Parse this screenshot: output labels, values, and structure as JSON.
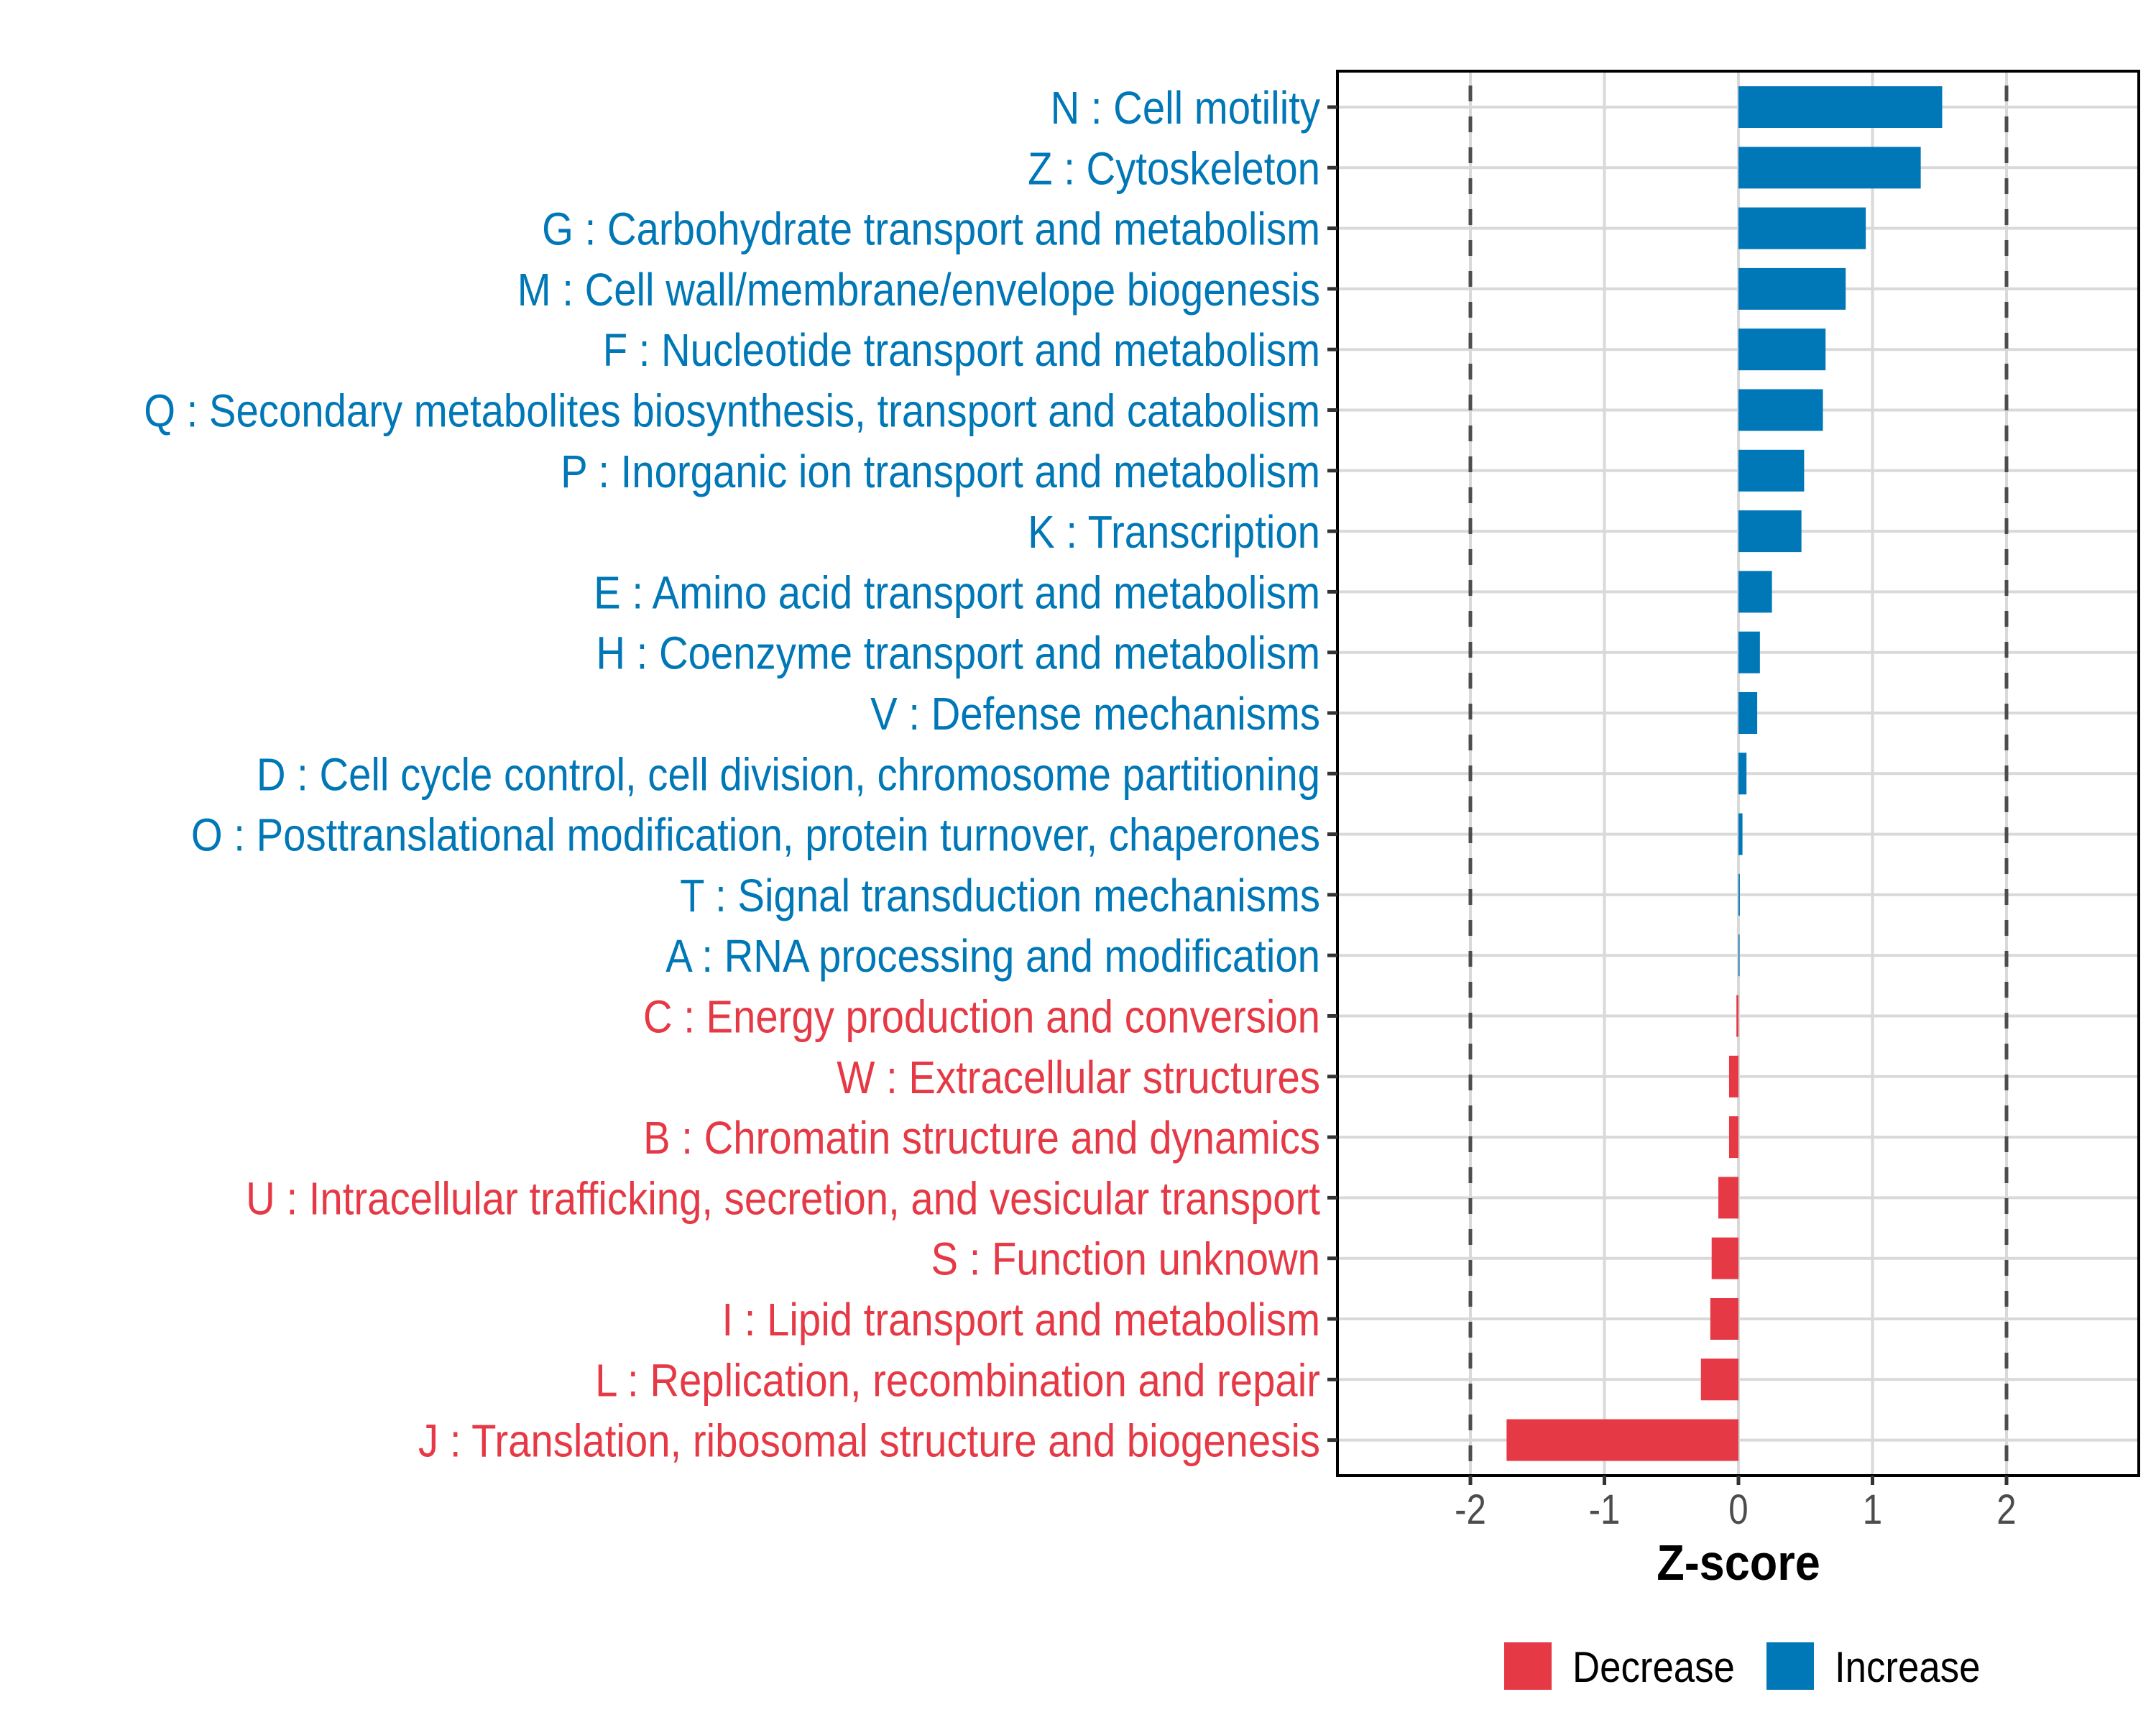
{
  "chart_data": {
    "type": "bar",
    "orientation": "horizontal",
    "title": "",
    "xlabel": "Z-score",
    "ylabel": "",
    "xlim": [
      -2.95,
      3.0
    ],
    "x_ticks": [
      -2,
      -1,
      0,
      1,
      2
    ],
    "x_tick_labels": [
      "-2",
      "-1",
      "0",
      "1",
      "2"
    ],
    "reference_lines": [
      {
        "x": -2,
        "style": "dashed"
      },
      {
        "x": 2,
        "style": "dashed"
      }
    ],
    "grid": true,
    "legend": {
      "position": "bottom",
      "entries": [
        {
          "label": "Decrease",
          "color": "#E63946"
        },
        {
          "label": "Increase",
          "color": "#0077B6"
        }
      ]
    },
    "colors": {
      "Increase": "#0077B6",
      "Decrease": "#E63946"
    },
    "categories": [
      "N : Cell motility",
      "Z : Cytoskeleton",
      "G : Carbohydrate transport and metabolism",
      "M : Cell wall/membrane/envelope biogenesis",
      "F : Nucleotide transport and metabolism",
      "Q : Secondary metabolites biosynthesis, transport and catabolism",
      "P : Inorganic ion transport and metabolism",
      "K : Transcription",
      "E : Amino acid transport and metabolism",
      "H : Coenzyme transport and metabolism",
      "V : Defense mechanisms",
      "D : Cell cycle control, cell division, chromosome partitioning",
      "O : Posttranslational modification, protein turnover, chaperones",
      "T : Signal transduction mechanisms",
      "A : RNA processing and modification",
      "C : Energy production and conversion",
      "W : Extracellular structures",
      "B : Chromatin structure and dynamics",
      "U : Intracellular trafficking, secretion, and vesicular transport",
      "S : Function unknown",
      "I : Lipid transport and metabolism",
      "L : Replication, recombination and repair",
      "J : Translation, ribosomal structure and biogenesis"
    ],
    "values": [
      1.52,
      1.36,
      0.95,
      0.8,
      0.65,
      0.63,
      0.49,
      0.47,
      0.25,
      0.16,
      0.14,
      0.06,
      0.03,
      0.01,
      0.005,
      -0.015,
      -0.07,
      -0.07,
      -0.15,
      -0.2,
      -0.21,
      -0.28,
      -1.73
    ],
    "direction": [
      "Increase",
      "Increase",
      "Increase",
      "Increase",
      "Increase",
      "Increase",
      "Increase",
      "Increase",
      "Increase",
      "Increase",
      "Increase",
      "Increase",
      "Increase",
      "Increase",
      "Increase",
      "Decrease",
      "Decrease",
      "Decrease",
      "Decrease",
      "Decrease",
      "Decrease",
      "Decrease",
      "Decrease"
    ]
  }
}
